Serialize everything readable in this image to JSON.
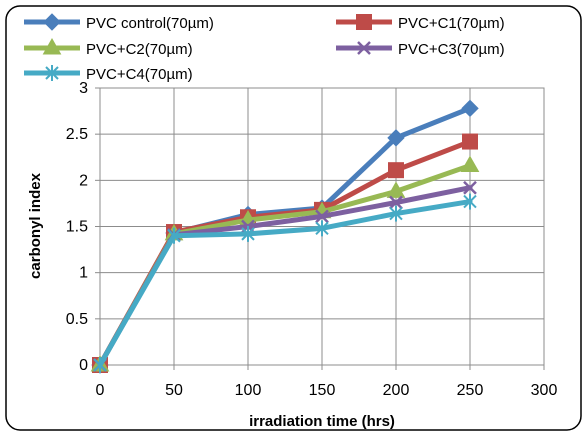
{
  "chart_data": {
    "type": "line",
    "title": "",
    "xlabel": "irradiation time (hrs)",
    "ylabel": "carbonyl index",
    "x": [
      0,
      50,
      100,
      150,
      200,
      250
    ],
    "xlim": [
      0,
      300
    ],
    "ylim": [
      0,
      3
    ],
    "xticks": [
      0,
      50,
      100,
      150,
      200,
      250,
      300
    ],
    "yticks": [
      0,
      0.5,
      1,
      1.5,
      2,
      2.5,
      3
    ],
    "grid": true,
    "legend_position": "top",
    "series": [
      {
        "name": "PVC control(70µm)",
        "values": [
          0,
          1.43,
          1.63,
          1.7,
          2.46,
          2.78
        ],
        "color": "#4a7ebb",
        "marker": "diamond"
      },
      {
        "name": "PVC+C1(70µm)",
        "values": [
          0,
          1.44,
          1.6,
          1.68,
          2.11,
          2.42
        ],
        "color": "#be4b48",
        "marker": "square"
      },
      {
        "name": "PVC+C2(70µm)",
        "values": [
          0,
          1.42,
          1.57,
          1.66,
          1.88,
          2.16
        ],
        "color": "#98b954",
        "marker": "triangle"
      },
      {
        "name": "PVC+C3(70µm)",
        "values": [
          0,
          1.41,
          1.5,
          1.61,
          1.76,
          1.92
        ],
        "color": "#7d60a0",
        "marker": "x"
      },
      {
        "name": "PVC+C4(70µm)",
        "values": [
          0,
          1.4,
          1.42,
          1.48,
          1.64,
          1.77
        ],
        "color": "#46aac5",
        "marker": "asterisk"
      }
    ]
  }
}
